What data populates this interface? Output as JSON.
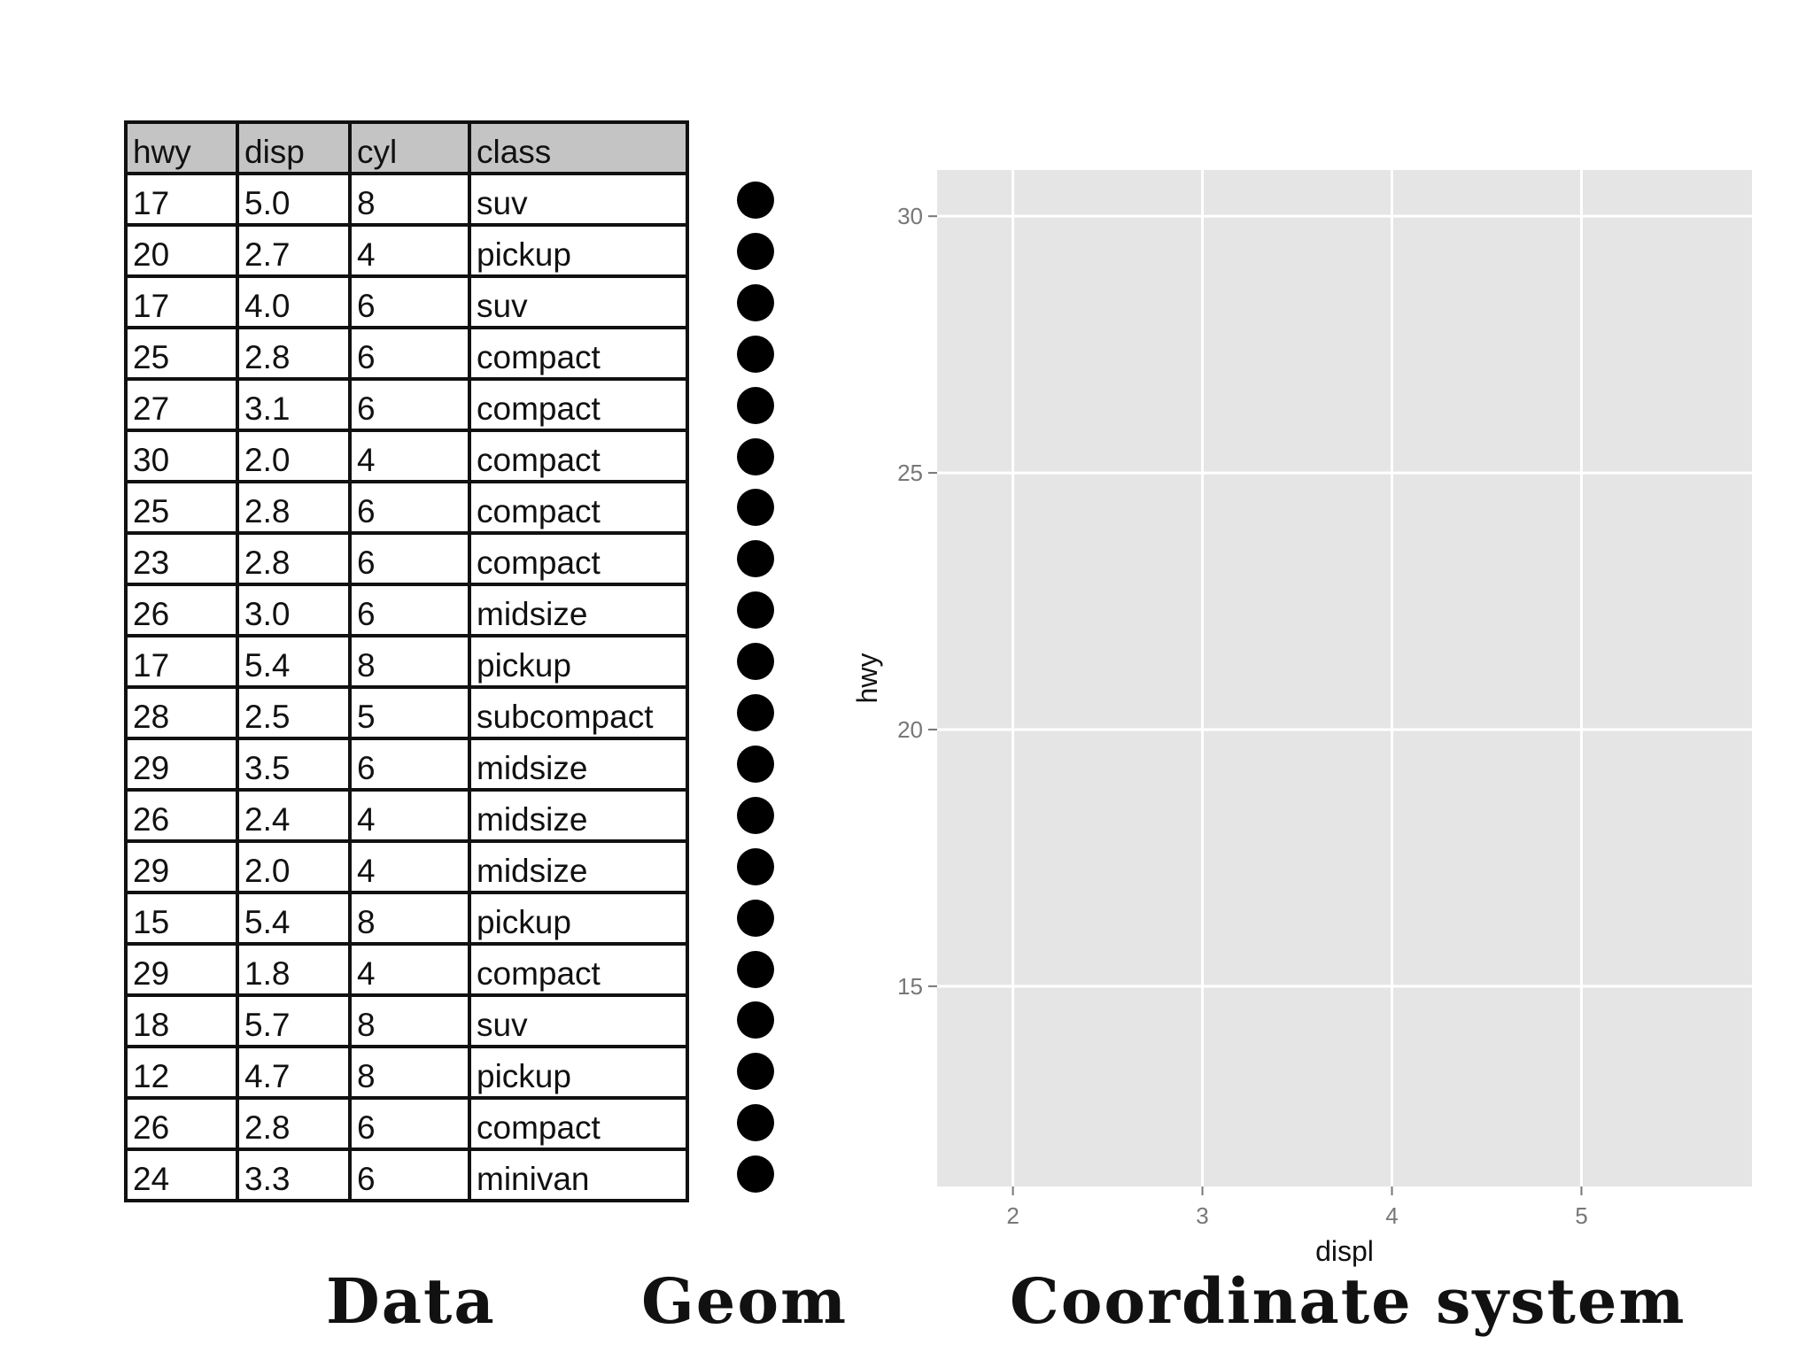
{
  "table": {
    "headers": [
      "hwy",
      "disp",
      "cyl",
      "class"
    ],
    "rows": [
      [
        "17",
        "5.0",
        "8",
        "suv"
      ],
      [
        "20",
        "2.7",
        "4",
        "pickup"
      ],
      [
        "17",
        "4.0",
        "6",
        "suv"
      ],
      [
        "25",
        "2.8",
        "6",
        "compact"
      ],
      [
        "27",
        "3.1",
        "6",
        "compact"
      ],
      [
        "30",
        "2.0",
        "4",
        "compact"
      ],
      [
        "25",
        "2.8",
        "6",
        "compact"
      ],
      [
        "23",
        "2.8",
        "6",
        "compact"
      ],
      [
        "26",
        "3.0",
        "6",
        "midsize"
      ],
      [
        "17",
        "5.4",
        "8",
        "pickup"
      ],
      [
        "28",
        "2.5",
        "5",
        "subcompact"
      ],
      [
        "29",
        "3.5",
        "6",
        "midsize"
      ],
      [
        "26",
        "2.4",
        "4",
        "midsize"
      ],
      [
        "29",
        "2.0",
        "4",
        "midsize"
      ],
      [
        "15",
        "5.4",
        "8",
        "pickup"
      ],
      [
        "29",
        "1.8",
        "4",
        "compact"
      ],
      [
        "18",
        "5.7",
        "8",
        "suv"
      ],
      [
        "12",
        "4.7",
        "8",
        "pickup"
      ],
      [
        "26",
        "2.8",
        "6",
        "compact"
      ],
      [
        "24",
        "3.3",
        "6",
        "minivan"
      ]
    ]
  },
  "geom": {
    "shape": "filled-circle",
    "count": 20,
    "color": "#000000"
  },
  "coordinate_system": {
    "panel_background": "#e5e5e5",
    "grid_color": "#ffffff",
    "tick_color": "#777777",
    "xlabel": "displ",
    "ylabel": "hwy",
    "x_ticks": [
      2,
      3,
      4,
      5
    ],
    "y_ticks": [
      15,
      20,
      25,
      30
    ],
    "xlim": [
      1.6,
      5.9
    ],
    "ylim": [
      11.1,
      30.9
    ],
    "grid": true
  },
  "captions": {
    "data": "Data",
    "geom": "Geom",
    "coordinate_system": "Coordinate system"
  }
}
